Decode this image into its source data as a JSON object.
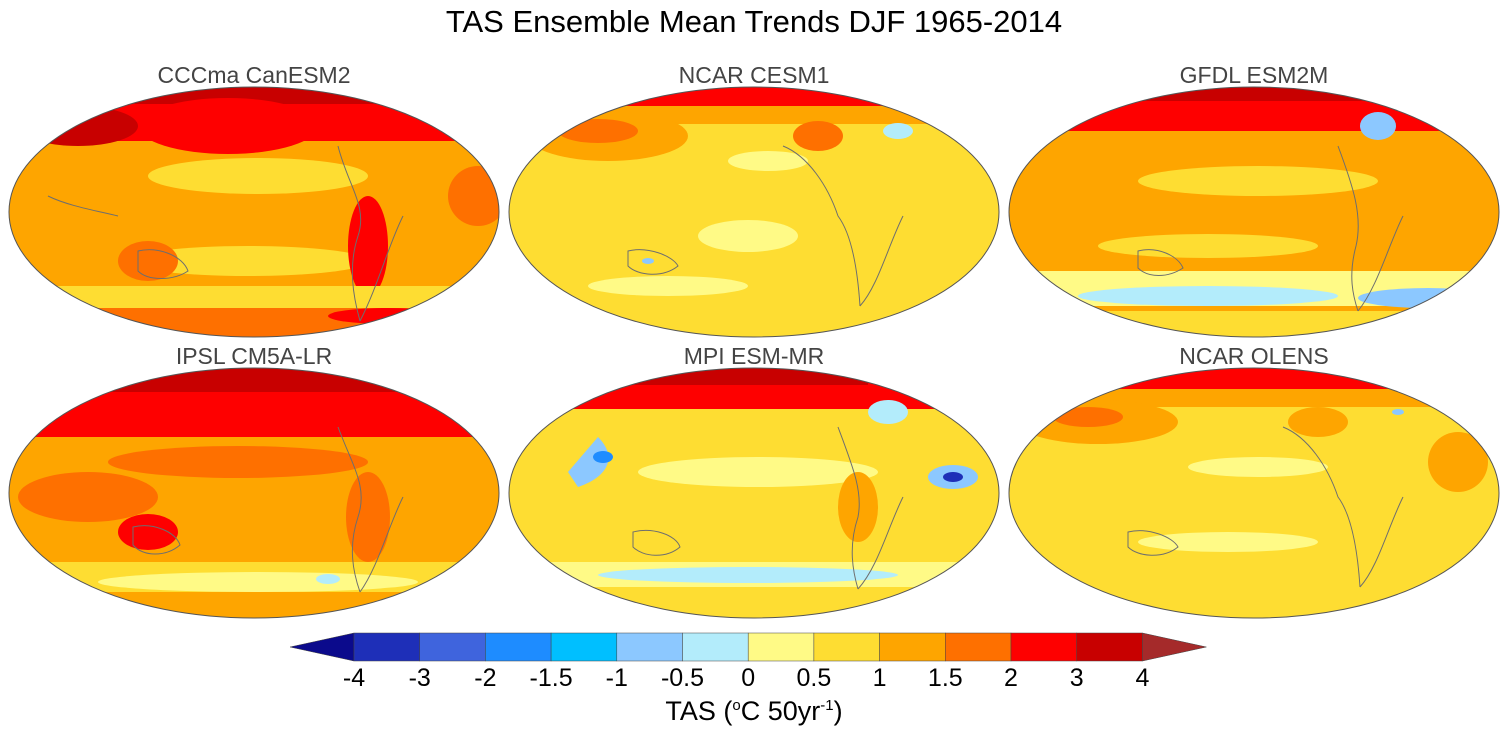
{
  "title": "TAS Ensemble Mean Trends DJF 1965-2014",
  "panels": [
    {
      "name": "CCCma CanESM2"
    },
    {
      "name": "NCAR CESM1"
    },
    {
      "name": "GFDL ESM2M"
    },
    {
      "name": "IPSL CM5A-LR"
    },
    {
      "name": "MPI ESM-MR"
    },
    {
      "name": "NCAR OLENS"
    }
  ],
  "colorbar": {
    "ticks": [
      "-4",
      "-3",
      "-2",
      "-1.5",
      "-1",
      "-0.5",
      "0",
      "0.5",
      "1",
      "1.5",
      "2",
      "3",
      "4"
    ],
    "colors": [
      "#0b0a8c",
      "#1e2fb8",
      "#3f64dd",
      "#1e8cff",
      "#00bfff",
      "#8cc8ff",
      "#b3ecfb",
      "#fffa86",
      "#fedd32",
      "#fea500",
      "#fe7000",
      "#fe0000",
      "#c80000",
      "#a52a2a"
    ],
    "label_prefix": "TAS (",
    "label_degree": "o",
    "label_mid": "C 50yr",
    "label_exp": "-1",
    "label_suffix": ")"
  },
  "colors": {
    "coast": "#6e6e6e",
    "land_line": "#555555"
  }
}
